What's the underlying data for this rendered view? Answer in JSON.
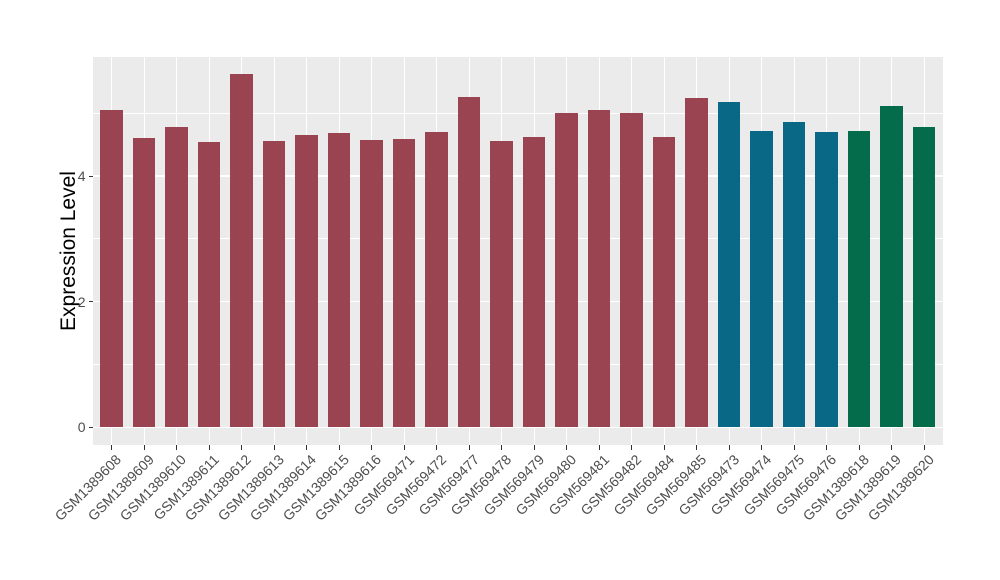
{
  "chart_data": {
    "type": "bar",
    "title": "",
    "xlabel": "",
    "ylabel": "Expression Level",
    "legend": "none",
    "grid": "on",
    "panel_bg": "#EBEBEB",
    "gridline_color": "#FFFFFF",
    "axis_text_color": "#4D4D4D",
    "tick_color": "#333333",
    "ylim": [
      0,
      5.9
    ],
    "ytick_labels": [
      "0",
      "2",
      "4"
    ],
    "ytick_values": [
      0,
      2,
      4
    ],
    "minor_tick_values": [
      1,
      3,
      5
    ],
    "group_colors": {
      "red": "#9A4452",
      "blue": "#0A6887",
      "green": "#046B4B"
    },
    "bars": [
      {
        "label": "GSM1389608",
        "value": 5.06,
        "group": "red"
      },
      {
        "label": "GSM1389609",
        "value": 4.6,
        "group": "red"
      },
      {
        "label": "GSM1389610",
        "value": 4.79,
        "group": "red"
      },
      {
        "label": "GSM1389611",
        "value": 4.54,
        "group": "red"
      },
      {
        "label": "GSM1389612",
        "value": 5.63,
        "group": "red"
      },
      {
        "label": "GSM1389613",
        "value": 4.56,
        "group": "red"
      },
      {
        "label": "GSM1389614",
        "value": 4.66,
        "group": "red"
      },
      {
        "label": "GSM1389615",
        "value": 4.69,
        "group": "red"
      },
      {
        "label": "GSM1389616",
        "value": 4.57,
        "group": "red"
      },
      {
        "label": "GSM569471",
        "value": 4.59,
        "group": "red"
      },
      {
        "label": "GSM569472",
        "value": 4.71,
        "group": "red"
      },
      {
        "label": "GSM569477",
        "value": 5.26,
        "group": "red"
      },
      {
        "label": "GSM569478",
        "value": 4.56,
        "group": "red"
      },
      {
        "label": "GSM569479",
        "value": 4.63,
        "group": "red"
      },
      {
        "label": "GSM569480",
        "value": 5.01,
        "group": "red"
      },
      {
        "label": "GSM569481",
        "value": 5.06,
        "group": "red"
      },
      {
        "label": "GSM569482",
        "value": 5.0,
        "group": "red"
      },
      {
        "label": "GSM569484",
        "value": 4.63,
        "group": "red"
      },
      {
        "label": "GSM569485",
        "value": 5.24,
        "group": "red"
      },
      {
        "label": "GSM569473",
        "value": 5.18,
        "group": "blue"
      },
      {
        "label": "GSM569474",
        "value": 4.72,
        "group": "blue"
      },
      {
        "label": "GSM569475",
        "value": 4.86,
        "group": "blue"
      },
      {
        "label": "GSM569476",
        "value": 4.7,
        "group": "blue"
      },
      {
        "label": "GSM1389618",
        "value": 4.72,
        "group": "green"
      },
      {
        "label": "GSM1389619",
        "value": 5.12,
        "group": "green"
      },
      {
        "label": "GSM1389620",
        "value": 4.79,
        "group": "green"
      }
    ]
  }
}
